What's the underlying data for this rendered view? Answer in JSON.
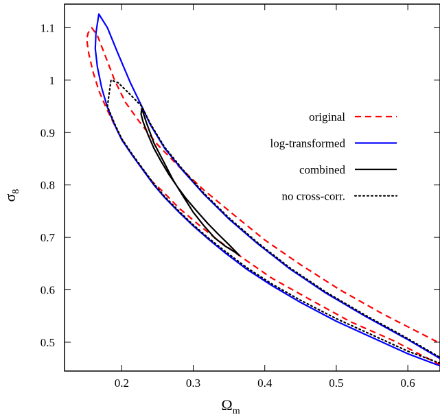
{
  "chart_data": {
    "type": "line",
    "xlabel": "Ω",
    "xlabel_sub": "m",
    "ylabel": "σ",
    "ylabel_sub": "8",
    "xlim": [
      0.12,
      0.645
    ],
    "ylim": [
      0.445,
      1.145
    ],
    "xticks": [
      0.2,
      0.3,
      0.4,
      0.5,
      0.6
    ],
    "xtick_labels": [
      "0.2",
      "0.3",
      "0.4",
      "0.5",
      "0.6"
    ],
    "yticks": [
      0.5,
      0.6,
      0.7,
      0.8,
      0.9,
      1.0,
      1.1
    ],
    "ytick_labels": [
      "0.5",
      "0.6",
      "0.7",
      "0.8",
      "0.9",
      "1",
      "1.1"
    ],
    "grid": false,
    "legend_position": "right",
    "series": [
      {
        "name": "original",
        "color": "#ff0000",
        "style": "dashed",
        "x": [
          0.645,
          0.58,
          0.52,
          0.46,
          0.41,
          0.37,
          0.335,
          0.305,
          0.28,
          0.26,
          0.24,
          0.225,
          0.21,
          0.198,
          0.188,
          0.178,
          0.168,
          0.16,
          0.154,
          0.151,
          0.153,
          0.158,
          0.166,
          0.176,
          0.19,
          0.205,
          0.225,
          0.25,
          0.28,
          0.315,
          0.355,
          0.4,
          0.45,
          0.505,
          0.565,
          0.645
        ],
        "y": [
          0.457,
          0.503,
          0.539,
          0.584,
          0.622,
          0.66,
          0.694,
          0.727,
          0.756,
          0.784,
          0.81,
          0.838,
          0.866,
          0.892,
          0.92,
          0.948,
          0.98,
          1.015,
          1.05,
          1.078,
          1.09,
          1.1,
          1.085,
          1.05,
          1.0,
          0.958,
          0.92,
          0.877,
          0.835,
          0.79,
          0.745,
          0.695,
          0.648,
          0.6,
          0.554,
          0.498
        ]
      },
      {
        "name": "log-transformed",
        "color": "#0000ff",
        "style": "solid",
        "x": [
          0.645,
          0.6,
          0.55,
          0.5,
          0.45,
          0.41,
          0.375,
          0.345,
          0.32,
          0.3,
          0.28,
          0.26,
          0.245,
          0.23,
          0.215,
          0.2,
          0.19,
          0.18,
          0.172,
          0.166,
          0.163,
          0.164,
          0.168,
          0.18,
          0.195,
          0.212,
          0.228,
          0.24,
          0.26,
          0.285,
          0.315,
          0.35,
          0.39,
          0.435,
          0.485,
          0.54,
          0.6,
          0.645
        ],
        "y": [
          0.455,
          0.478,
          0.509,
          0.54,
          0.576,
          0.608,
          0.639,
          0.67,
          0.698,
          0.722,
          0.748,
          0.776,
          0.8,
          0.828,
          0.856,
          0.886,
          0.915,
          0.948,
          0.985,
          1.025,
          1.06,
          1.09,
          1.126,
          1.1,
          1.05,
          0.995,
          0.95,
          0.915,
          0.87,
          0.828,
          0.782,
          0.735,
          0.688,
          0.64,
          0.594,
          0.55,
          0.505,
          0.469
        ]
      },
      {
        "name": "combined",
        "color": "#000000",
        "style": "solid",
        "x": [
          0.365,
          0.35,
          0.335,
          0.32,
          0.305,
          0.29,
          0.278,
          0.266,
          0.255,
          0.245,
          0.237,
          0.23,
          0.227,
          0.228,
          0.235,
          0.245,
          0.258,
          0.272,
          0.287,
          0.3,
          0.315,
          0.33,
          0.345,
          0.358,
          0.365
        ],
        "y": [
          0.665,
          0.686,
          0.706,
          0.727,
          0.75,
          0.774,
          0.796,
          0.82,
          0.845,
          0.87,
          0.895,
          0.92,
          0.935,
          0.946,
          0.917,
          0.88,
          0.846,
          0.809,
          0.776,
          0.748,
          0.722,
          0.699,
          0.683,
          0.672,
          0.665
        ]
      },
      {
        "name": "no cross-corr.",
        "color": "#000000",
        "style": "dotted",
        "x": [
          0.645,
          0.6,
          0.55,
          0.5,
          0.45,
          0.41,
          0.375,
          0.345,
          0.32,
          0.3,
          0.28,
          0.26,
          0.245,
          0.23,
          0.215,
          0.2,
          0.19,
          0.18,
          0.185,
          0.195,
          0.21,
          0.228,
          0.24,
          0.26,
          0.285,
          0.315,
          0.35,
          0.39,
          0.435,
          0.485,
          0.54,
          0.6,
          0.645
        ],
        "y": [
          0.46,
          0.483,
          0.514,
          0.545,
          0.58,
          0.611,
          0.642,
          0.673,
          0.7,
          0.724,
          0.75,
          0.778,
          0.802,
          0.83,
          0.858,
          0.888,
          0.917,
          0.95,
          1.0,
          0.995,
          0.975,
          0.95,
          0.917,
          0.872,
          0.83,
          0.784,
          0.737,
          0.69,
          0.642,
          0.596,
          0.552,
          0.507,
          0.471
        ]
      }
    ]
  }
}
